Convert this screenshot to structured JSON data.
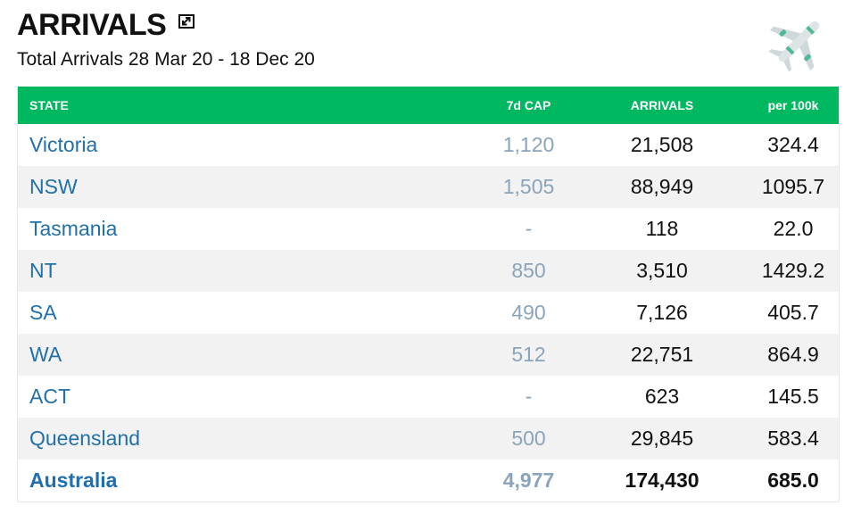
{
  "header": {
    "title": "ARRIVALS",
    "subtitle": "Total Arrivals 28 Mar 20 - 18 Dec 20",
    "expand_icon": "expand-icon",
    "plane_icon": "airplane-icon"
  },
  "colors": {
    "header_bg": "#00b860",
    "state_link": "#2270a8",
    "cap_text": "#8aa4bb",
    "alt_row_bg": "#f2f2f2"
  },
  "table": {
    "columns": {
      "state": "STATE",
      "cap": "7d CAP",
      "arrivals": "ARRIVALS",
      "per100k": "per 100k"
    },
    "rows": [
      {
        "state": "Victoria",
        "cap": "1,120",
        "arrivals": "21,508",
        "per100k": "324.4"
      },
      {
        "state": "NSW",
        "cap": "1,505",
        "arrivals": "88,949",
        "per100k": "1095.7"
      },
      {
        "state": "Tasmania",
        "cap": "-",
        "arrivals": "118",
        "per100k": "22.0"
      },
      {
        "state": "NT",
        "cap": "850",
        "arrivals": "3,510",
        "per100k": "1429.2"
      },
      {
        "state": "SA",
        "cap": "490",
        "arrivals": "7,126",
        "per100k": "405.7"
      },
      {
        "state": "WA",
        "cap": "512",
        "arrivals": "22,751",
        "per100k": "864.9"
      },
      {
        "state": "ACT",
        "cap": "-",
        "arrivals": "623",
        "per100k": "145.5"
      },
      {
        "state": "Queensland",
        "cap": "500",
        "arrivals": "29,845",
        "per100k": "583.4"
      }
    ],
    "total": {
      "state": "Australia",
      "cap": "4,977",
      "arrivals": "174,430",
      "per100k": "685.0"
    }
  }
}
